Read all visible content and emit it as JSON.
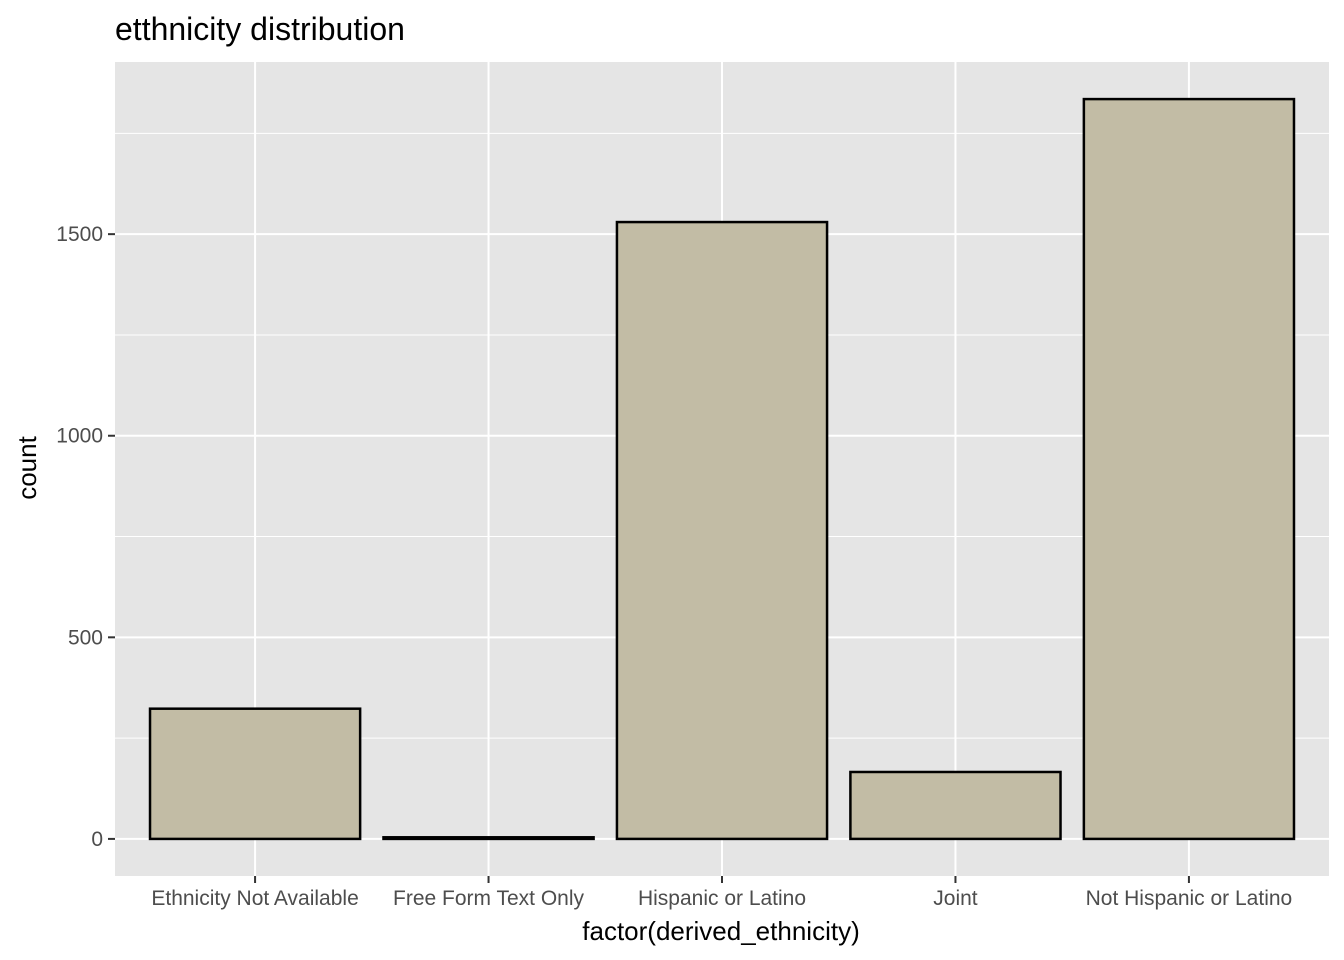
{
  "chart_data": {
    "type": "bar",
    "title": "etthnicity distribution",
    "xlabel": "factor(derived_ethnicity)",
    "ylabel": "count",
    "categories": [
      "Ethnicity Not Available",
      "Free Form Text Only",
      "Hispanic or Latino",
      "Joint",
      "Not Hispanic or Latino"
    ],
    "values": [
      323,
      4,
      1530,
      166,
      1835
    ],
    "ylim": [
      -92,
      1927
    ],
    "y_ticks": [
      0,
      500,
      1000,
      1500
    ],
    "y_tick_labels": [
      "0",
      "500",
      "1000",
      "1500"
    ],
    "grid": true,
    "legend": "none",
    "colors": {
      "panel_background": "#e5e5e5",
      "grid_line": "#ffffff",
      "bar_fill": "#c2bca5",
      "bar_outline": "#000000",
      "tick": "#333333"
    }
  }
}
